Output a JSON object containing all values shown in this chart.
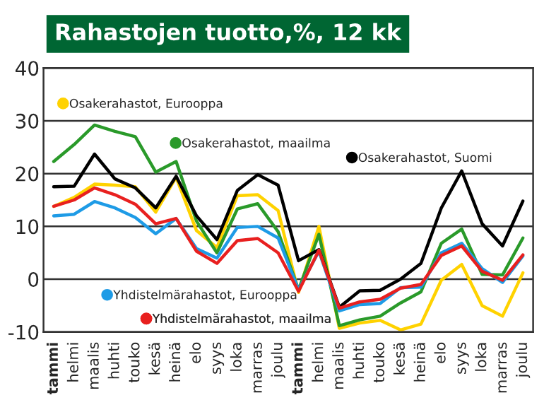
{
  "chart_data": {
    "type": "line",
    "title": "Rahastojen tuotto,%, 12 kk",
    "categories": [
      "tammi",
      "helmi",
      "maalis",
      "huhti",
      "touko",
      "kesä",
      "heinä",
      "elo",
      "syys",
      "loka",
      "marras",
      "joulu",
      "tammi",
      "helmi",
      "maalis",
      "huhti",
      "touko",
      "kesä",
      "heinä",
      "elo",
      "syys",
      "loka",
      "marras",
      "joulu"
    ],
    "series": [
      {
        "name": "Osakerahastot, Eurooppa",
        "color": "#ffd200",
        "values": [
          13.8,
          15.5,
          18,
          17.8,
          17.5,
          12.7,
          19.3,
          9.2,
          6,
          15.8,
          16,
          13,
          -2.5,
          10,
          -9.3,
          -8.3,
          -7.8,
          -9.6,
          -8.5,
          -0.2,
          2.8,
          -5,
          -7,
          1.2
        ]
      },
      {
        "name": "Osakerahastot, maailma",
        "color": "#2a9a2a",
        "values": [
          22.3,
          25.5,
          29.2,
          28,
          27,
          20.3,
          22.3,
          11,
          5,
          13.3,
          14.3,
          9,
          -2,
          8.5,
          -8.8,
          -7.7,
          -7,
          -4.5,
          -2.4,
          6.8,
          9.5,
          0.9,
          0.8,
          7.8
        ]
      },
      {
        "name": "Osakerahastot, Suomi",
        "color": "#000000",
        "values": [
          17.5,
          17.6,
          23.7,
          19,
          17.3,
          13.5,
          19.5,
          12,
          7.5,
          16.8,
          19.8,
          17.8,
          3.5,
          5.6,
          -5.3,
          -2.2,
          -2.1,
          0,
          3,
          13.5,
          20.5,
          10.5,
          6.3,
          14.8
        ]
      },
      {
        "name": "Yhdistelmärahastot, Eurooppa",
        "color": "#1e9be6",
        "values": [
          12,
          12.3,
          14.7,
          13.5,
          11.7,
          8.6,
          11.5,
          5.8,
          4,
          9.8,
          10,
          7.8,
          -2,
          5.3,
          -6,
          -4.8,
          -4.6,
          -1.6,
          -1.5,
          5,
          6.8,
          2,
          -0.6,
          4.4
        ]
      },
      {
        "name": "Yhdistelmärahastot, maailma",
        "color": "#e8201f",
        "values": [
          13.8,
          15,
          17.3,
          16,
          14.2,
          10.5,
          11.5,
          5.3,
          3,
          7.3,
          7.7,
          5,
          -2.3,
          5.5,
          -5.5,
          -4.3,
          -3.8,
          -1.7,
          -1,
          4.5,
          6.3,
          1.5,
          -0.2,
          4.6
        ]
      }
    ],
    "ylim": [
      -10,
      40
    ],
    "yticks": [
      -10,
      0,
      10,
      20,
      30,
      40
    ],
    "grid": "y",
    "legend": "bottom left",
    "marker": "none",
    "line_style": "solid"
  }
}
